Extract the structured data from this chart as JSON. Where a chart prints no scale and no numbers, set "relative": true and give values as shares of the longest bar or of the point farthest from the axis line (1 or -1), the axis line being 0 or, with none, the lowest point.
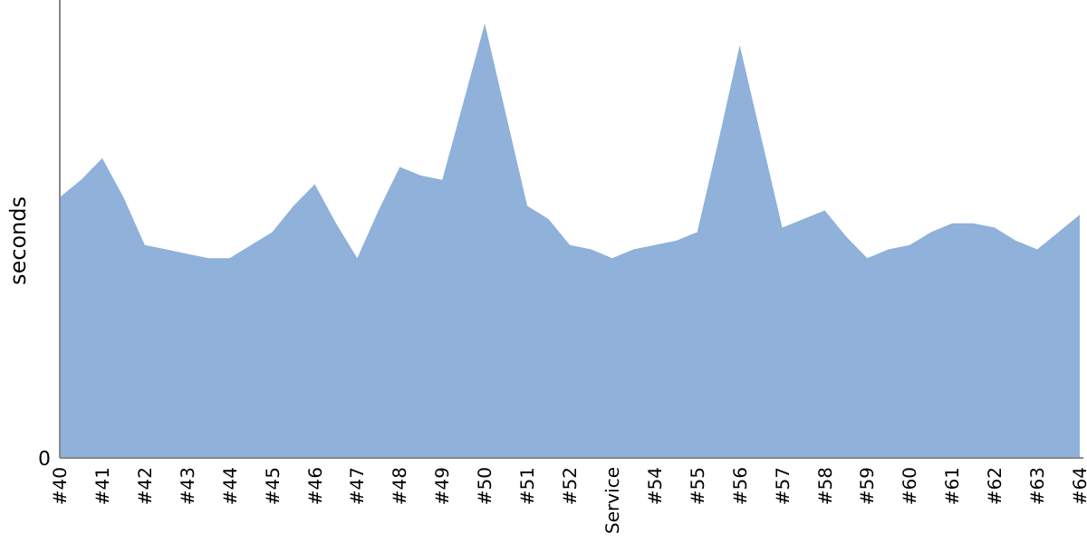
{
  "chart_data": {
    "type": "area",
    "relative": true,
    "ylabel": "seconds",
    "annotations": [
      "0"
    ],
    "categories": [
      "#40",
      null,
      "#41",
      null,
      "#42",
      null,
      "#43",
      null,
      "#44",
      null,
      "#45",
      null,
      "#46",
      null,
      "#47",
      null,
      "#48",
      null,
      "#49",
      null,
      "#50",
      null,
      "#51",
      null,
      "#52",
      null,
      "Service",
      null,
      "#54",
      null,
      "#55",
      null,
      "#56",
      null,
      "#57",
      null,
      "#58",
      null,
      "#59",
      null,
      "#60",
      null,
      "#61",
      null,
      "#62",
      null,
      "#63",
      null,
      "#64"
    ],
    "series": [
      {
        "color": "#8fb1da",
        "values": [
          0.6,
          0.64,
          0.69,
          0.6,
          0.49,
          0.48,
          0.47,
          0.46,
          0.46,
          0.49,
          0.52,
          0.58,
          0.63,
          0.54,
          0.46,
          0.57,
          0.67,
          0.65,
          0.64,
          0.82,
          1,
          0.79,
          0.58,
          0.55,
          0.49,
          0.48,
          0.46,
          0.48,
          0.49,
          0.5,
          0.52,
          0.73,
          0.95,
          0.74,
          0.53,
          0.55,
          0.57,
          0.51,
          0.46,
          0.48,
          0.49,
          0.52,
          0.54,
          0.54,
          0.53,
          0.5,
          0.48,
          0.52,
          0.56
        ]
      }
    ]
  }
}
